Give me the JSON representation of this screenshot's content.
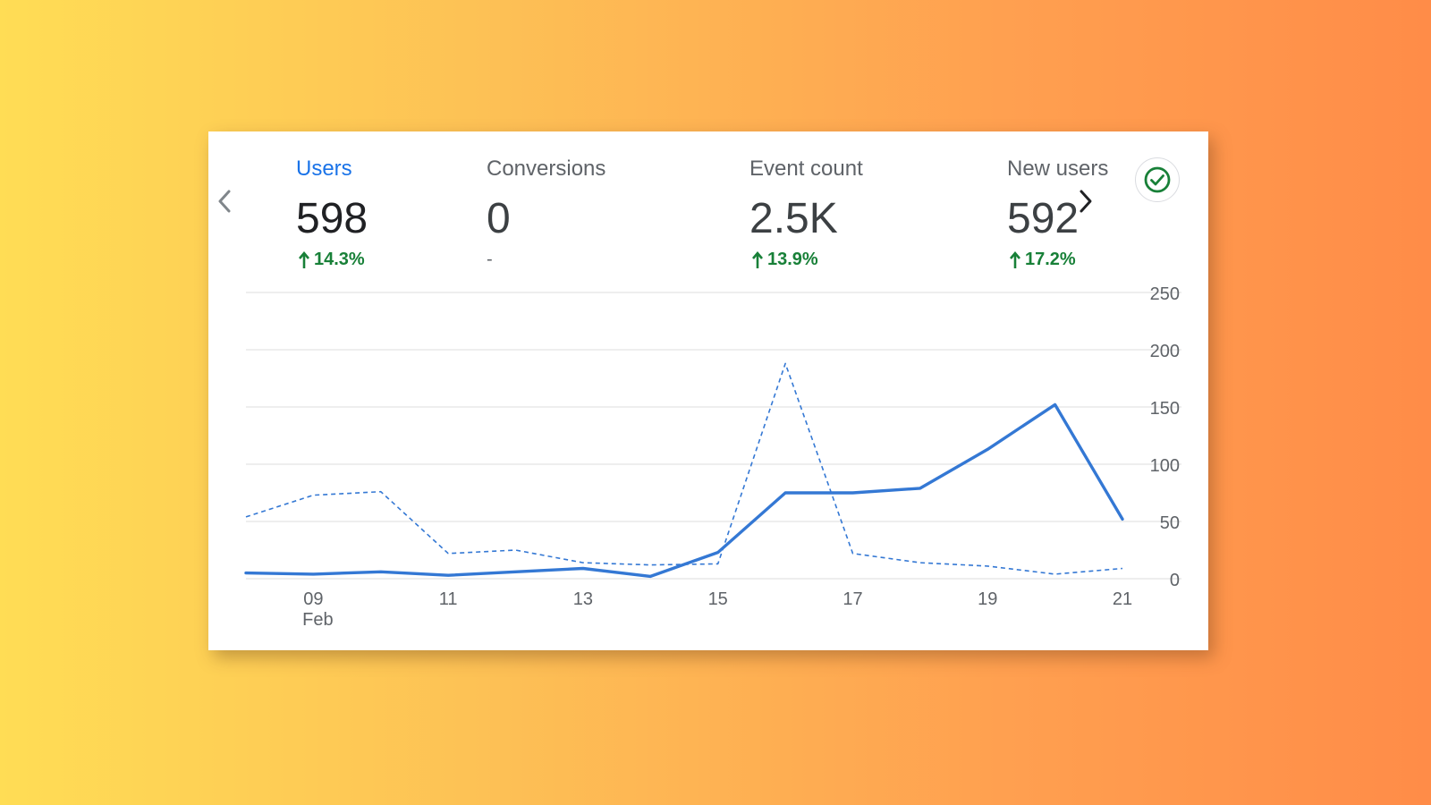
{
  "metrics": [
    {
      "name": "Users",
      "value": "598",
      "change": "14.3%",
      "direction": "up",
      "active": true
    },
    {
      "name": "Conversions",
      "value": "0",
      "change": "-",
      "direction": "none",
      "active": false
    },
    {
      "name": "Event count",
      "value": "2.5K",
      "change": "13.9%",
      "direction": "up",
      "active": false
    },
    {
      "name": "New users",
      "value": "592",
      "change": "17.2%",
      "direction": "up",
      "active": false
    }
  ],
  "icons": {
    "prev": "chevron-left-icon",
    "next": "chevron-right-icon",
    "status": "check-circle-icon"
  },
  "colors": {
    "accent": "#1a73e8",
    "series_line": "#3478d4",
    "positive": "#188038",
    "status_ok": "#188038"
  },
  "chart_data": {
    "type": "line",
    "x": [
      "08",
      "09",
      "10",
      "11",
      "12",
      "13",
      "14",
      "15",
      "16",
      "17",
      "18",
      "19",
      "20",
      "21"
    ],
    "x_tick_labels": [
      "09",
      "11",
      "13",
      "15",
      "17",
      "19",
      "21"
    ],
    "x_tick_values": [
      "09",
      "11",
      "13",
      "15",
      "17",
      "19",
      "21"
    ],
    "x_month_label": "Feb",
    "y_ticks": [
      "0",
      "50",
      "100",
      "150",
      "200",
      "250"
    ],
    "ylim": [
      0,
      250
    ],
    "y_axis_position": "right",
    "grid": true,
    "series": [
      {
        "style": "solid",
        "values": [
          5,
          4,
          6,
          3,
          6,
          9,
          2,
          23,
          75,
          75,
          79,
          113,
          152,
          52
        ]
      },
      {
        "style": "dashed",
        "values": [
          54,
          73,
          76,
          22,
          25,
          14,
          12,
          13,
          188,
          22,
          14,
          11,
          4,
          9
        ]
      }
    ]
  }
}
